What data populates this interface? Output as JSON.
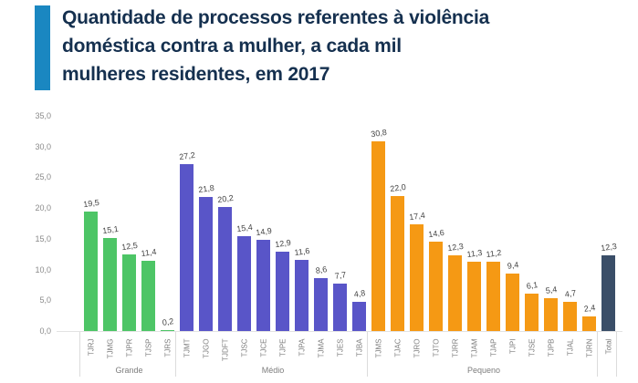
{
  "title": {
    "full": "Quantidade de processos referentes à violência doméstica contra a mulher, a cada mil mulheres residentes, em 2017",
    "lines": [
      "Quantidade de processos referentes à violência",
      "doméstica contra a mulher, a cada mil",
      "mulheres residentes, em 2017"
    ]
  },
  "colors": {
    "accent": "#1a87c1",
    "title_text": "#15304f",
    "grande": "#4dc566",
    "medio": "#5955c8",
    "pequeno": "#f59914",
    "total": "#3a4e68",
    "axis_text": "#8a8a8a"
  },
  "chart_data": {
    "type": "bar",
    "title": "Quantidade de processos referentes à violência doméstica contra a mulher, a cada mil mulheres residentes, em 2017",
    "xlabel": "",
    "ylabel": "",
    "ylim": [
      0,
      35
    ],
    "grid": false,
    "legend": false,
    "yticks": [
      {
        "value": 0,
        "label": "0,0"
      },
      {
        "value": 5,
        "label": "5,0"
      },
      {
        "value": 10,
        "label": "10,0"
      },
      {
        "value": 15,
        "label": "15,0"
      },
      {
        "value": 20,
        "label": "20,0"
      },
      {
        "value": 25,
        "label": "25,0"
      },
      {
        "value": 30,
        "label": "30,0"
      },
      {
        "value": 35,
        "label": "35,0"
      }
    ],
    "groups": [
      {
        "label": "Grande",
        "color_key": "grande",
        "bars": [
          {
            "category": "TJRJ",
            "value": 19.5,
            "label": "19,5"
          },
          {
            "category": "TJMG",
            "value": 15.1,
            "label": "15,1"
          },
          {
            "category": "TJPR",
            "value": 12.5,
            "label": "12,5"
          },
          {
            "category": "TJSP",
            "value": 11.4,
            "label": "11,4"
          },
          {
            "category": "TJRS",
            "value": 0.2,
            "label": "0,2"
          }
        ]
      },
      {
        "label": "Médio",
        "color_key": "medio",
        "bars": [
          {
            "category": "TJMT",
            "value": 27.2,
            "label": "27,2"
          },
          {
            "category": "TJGO",
            "value": 21.8,
            "label": "21,8"
          },
          {
            "category": "TJDFT",
            "value": 20.2,
            "label": "20,2"
          },
          {
            "category": "TJSC",
            "value": 15.4,
            "label": "15,4"
          },
          {
            "category": "TJCE",
            "value": 14.9,
            "label": "14,9"
          },
          {
            "category": "TJPE",
            "value": 12.9,
            "label": "12,9"
          },
          {
            "category": "TJPA",
            "value": 11.6,
            "label": "11,6"
          },
          {
            "category": "TJMA",
            "value": 8.6,
            "label": "8,6"
          },
          {
            "category": "TJES",
            "value": 7.7,
            "label": "7,7"
          },
          {
            "category": "TJBA",
            "value": 4.8,
            "label": "4,8"
          }
        ]
      },
      {
        "label": "Pequeno",
        "color_key": "pequeno",
        "bars": [
          {
            "category": "TJMS",
            "value": 30.8,
            "label": "30,8"
          },
          {
            "category": "TJAC",
            "value": 22.0,
            "label": "22,0"
          },
          {
            "category": "TJRO",
            "value": 17.4,
            "label": "17,4"
          },
          {
            "category": "TJTO",
            "value": 14.6,
            "label": "14,6"
          },
          {
            "category": "TJRR",
            "value": 12.3,
            "label": "12,3"
          },
          {
            "category": "TJAM",
            "value": 11.3,
            "label": "11,3"
          },
          {
            "category": "TJAP",
            "value": 11.2,
            "label": "11,2"
          },
          {
            "category": "TJPI",
            "value": 9.4,
            "label": "9,4"
          },
          {
            "category": "TJSE",
            "value": 6.1,
            "label": "6,1"
          },
          {
            "category": "TJPB",
            "value": 5.4,
            "label": "5,4"
          },
          {
            "category": "TJAL",
            "value": 4.7,
            "label": "4,7"
          },
          {
            "category": "TJRN",
            "value": 2.4,
            "label": "2,4"
          }
        ]
      },
      {
        "label": "",
        "color_key": "total",
        "bars": [
          {
            "category": "Total",
            "value": 12.3,
            "label": "12,3"
          }
        ]
      }
    ]
  }
}
